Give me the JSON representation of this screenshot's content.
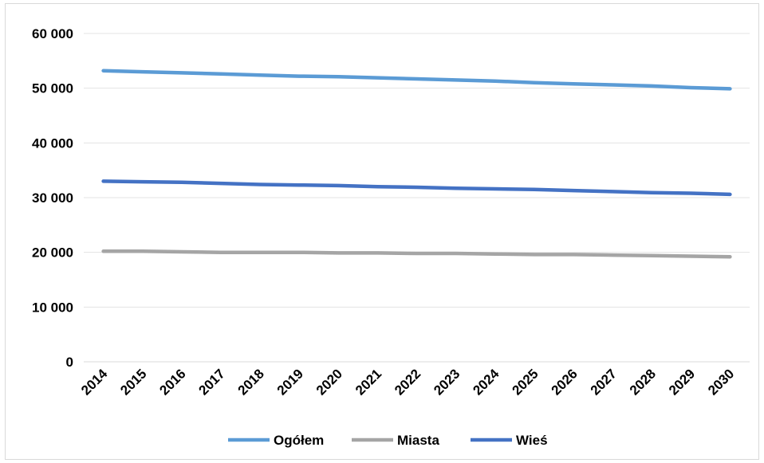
{
  "chart_data": {
    "type": "line",
    "title": "",
    "xlabel": "",
    "ylabel": "",
    "x": [
      "2014",
      "2015",
      "2016",
      "2017",
      "2018",
      "2019",
      "2020",
      "2021",
      "2022",
      "2023",
      "2024",
      "2025",
      "2026",
      "2027",
      "2028",
      "2029",
      "2030"
    ],
    "ylim": [
      0,
      60000
    ],
    "yticks": [
      0,
      10000,
      20000,
      30000,
      40000,
      50000,
      60000
    ],
    "ytick_labels": [
      "0",
      "10 000",
      "20 000",
      "30 000",
      "40 000",
      "50 000",
      "60 000"
    ],
    "grid": true,
    "legend_position": "bottom",
    "series": [
      {
        "name": "Ogółem",
        "color": "#5b9bd5",
        "values": [
          53200,
          53000,
          52800,
          52600,
          52400,
          52200,
          52100,
          51900,
          51700,
          51500,
          51300,
          51000,
          50800,
          50600,
          50400,
          50100,
          49900
        ]
      },
      {
        "name": "Miasta",
        "color": "#a5a5a5",
        "values": [
          20200,
          20200,
          20100,
          20000,
          20000,
          20000,
          19900,
          19900,
          19800,
          19800,
          19700,
          19600,
          19600,
          19500,
          19400,
          19300,
          19200
        ]
      },
      {
        "name": "Wieś",
        "color": "#4472c4",
        "values": [
          33000,
          32900,
          32800,
          32600,
          32400,
          32300,
          32200,
          32000,
          31900,
          31700,
          31600,
          31500,
          31300,
          31100,
          30900,
          30800,
          30600
        ]
      }
    ]
  }
}
